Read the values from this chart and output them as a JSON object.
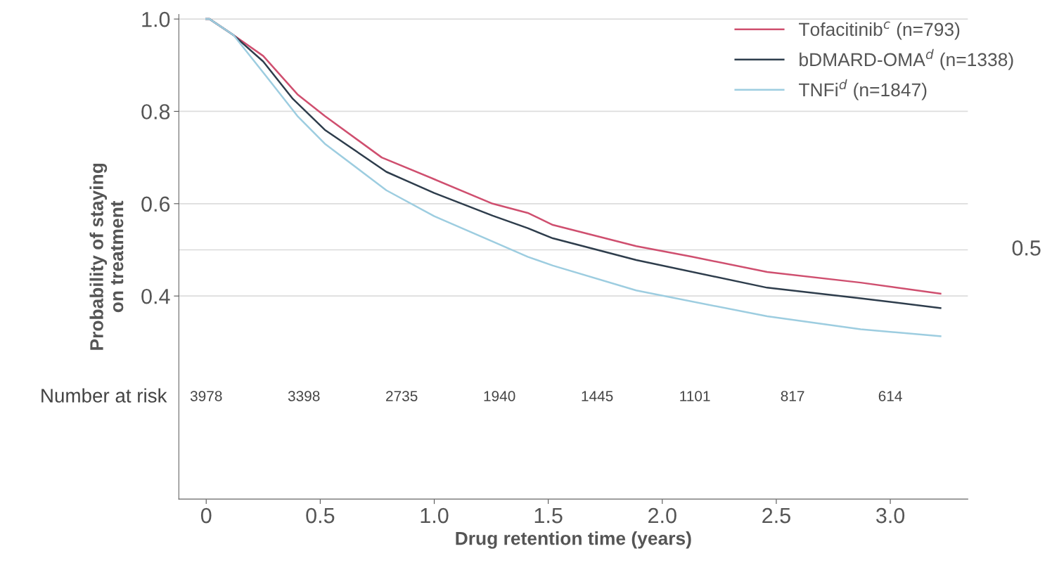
{
  "chart_data": {
    "type": "line",
    "xlabel": "Drug retention time (years)",
    "ylabel": "Probability of staying\non treatment",
    "xlim": [
      -0.12,
      3.34
    ],
    "ylim": [
      -0.04,
      1.01
    ],
    "xticks": [
      {
        "value": 0,
        "label": "0"
      },
      0.5,
      {
        "value": 1,
        "label": "1.0"
      },
      1.5,
      {
        "value": 2,
        "label": "2.0"
      },
      2.5,
      {
        "value": 3,
        "label": "3.0"
      }
    ],
    "yticks": [
      0.4,
      0.6,
      0.8,
      {
        "value": 1,
        "label": "1.0"
      }
    ],
    "grid": "y",
    "legend": "top right",
    "line_style": "solid",
    "marker": "none",
    "ref_lines": [
      {
        "axis": "y",
        "value": 0.5,
        "label": "0.5",
        "color": "#d9d9d9"
      }
    ],
    "series": [
      {
        "name": "Tofacitinib$^{c}$ (n=793)",
        "color": "#cf4f6f",
        "x": [
          0.0,
          0.015,
          0.12,
          0.25,
          0.4,
          0.52,
          0.77,
          1.0,
          1.256,
          1.41,
          1.52,
          1.886,
          2.13,
          2.46,
          2.87,
          3.22
        ],
        "values": [
          1.0,
          1.0,
          0.965,
          0.92,
          0.837,
          0.79,
          0.7,
          0.653,
          0.6,
          0.58,
          0.554,
          0.508,
          0.485,
          0.452,
          0.429,
          0.405
        ]
      },
      {
        "name": "bDMARD-OMA$^{d}$ (n=1338)",
        "color": "#2e3d4c",
        "x": [
          0.0,
          0.015,
          0.12,
          0.25,
          0.38,
          0.52,
          0.79,
          1.0,
          1.256,
          1.41,
          1.52,
          1.886,
          2.46,
          2.87,
          3.22
        ],
        "values": [
          1.0,
          1.0,
          0.965,
          0.908,
          0.827,
          0.76,
          0.669,
          0.623,
          0.574,
          0.547,
          0.525,
          0.478,
          0.418,
          0.395,
          0.374
        ]
      },
      {
        "name": "TNFi$^{d}$ (n=1847)",
        "color": "#9dcde0",
        "x": [
          0.0,
          0.015,
          0.12,
          0.26,
          0.4,
          0.52,
          0.79,
          1.0,
          1.256,
          1.41,
          1.52,
          1.886,
          2.46,
          2.87,
          3.22
        ],
        "values": [
          1.0,
          1.0,
          0.965,
          0.878,
          0.79,
          0.73,
          0.629,
          0.573,
          0.518,
          0.485,
          0.466,
          0.412,
          0.356,
          0.328,
          0.313
        ]
      }
    ],
    "annotations": [
      "Number at risk",
      "3978",
      "3398",
      "2735",
      "1940",
      "1445",
      "1101",
      "817",
      "614"
    ]
  }
}
